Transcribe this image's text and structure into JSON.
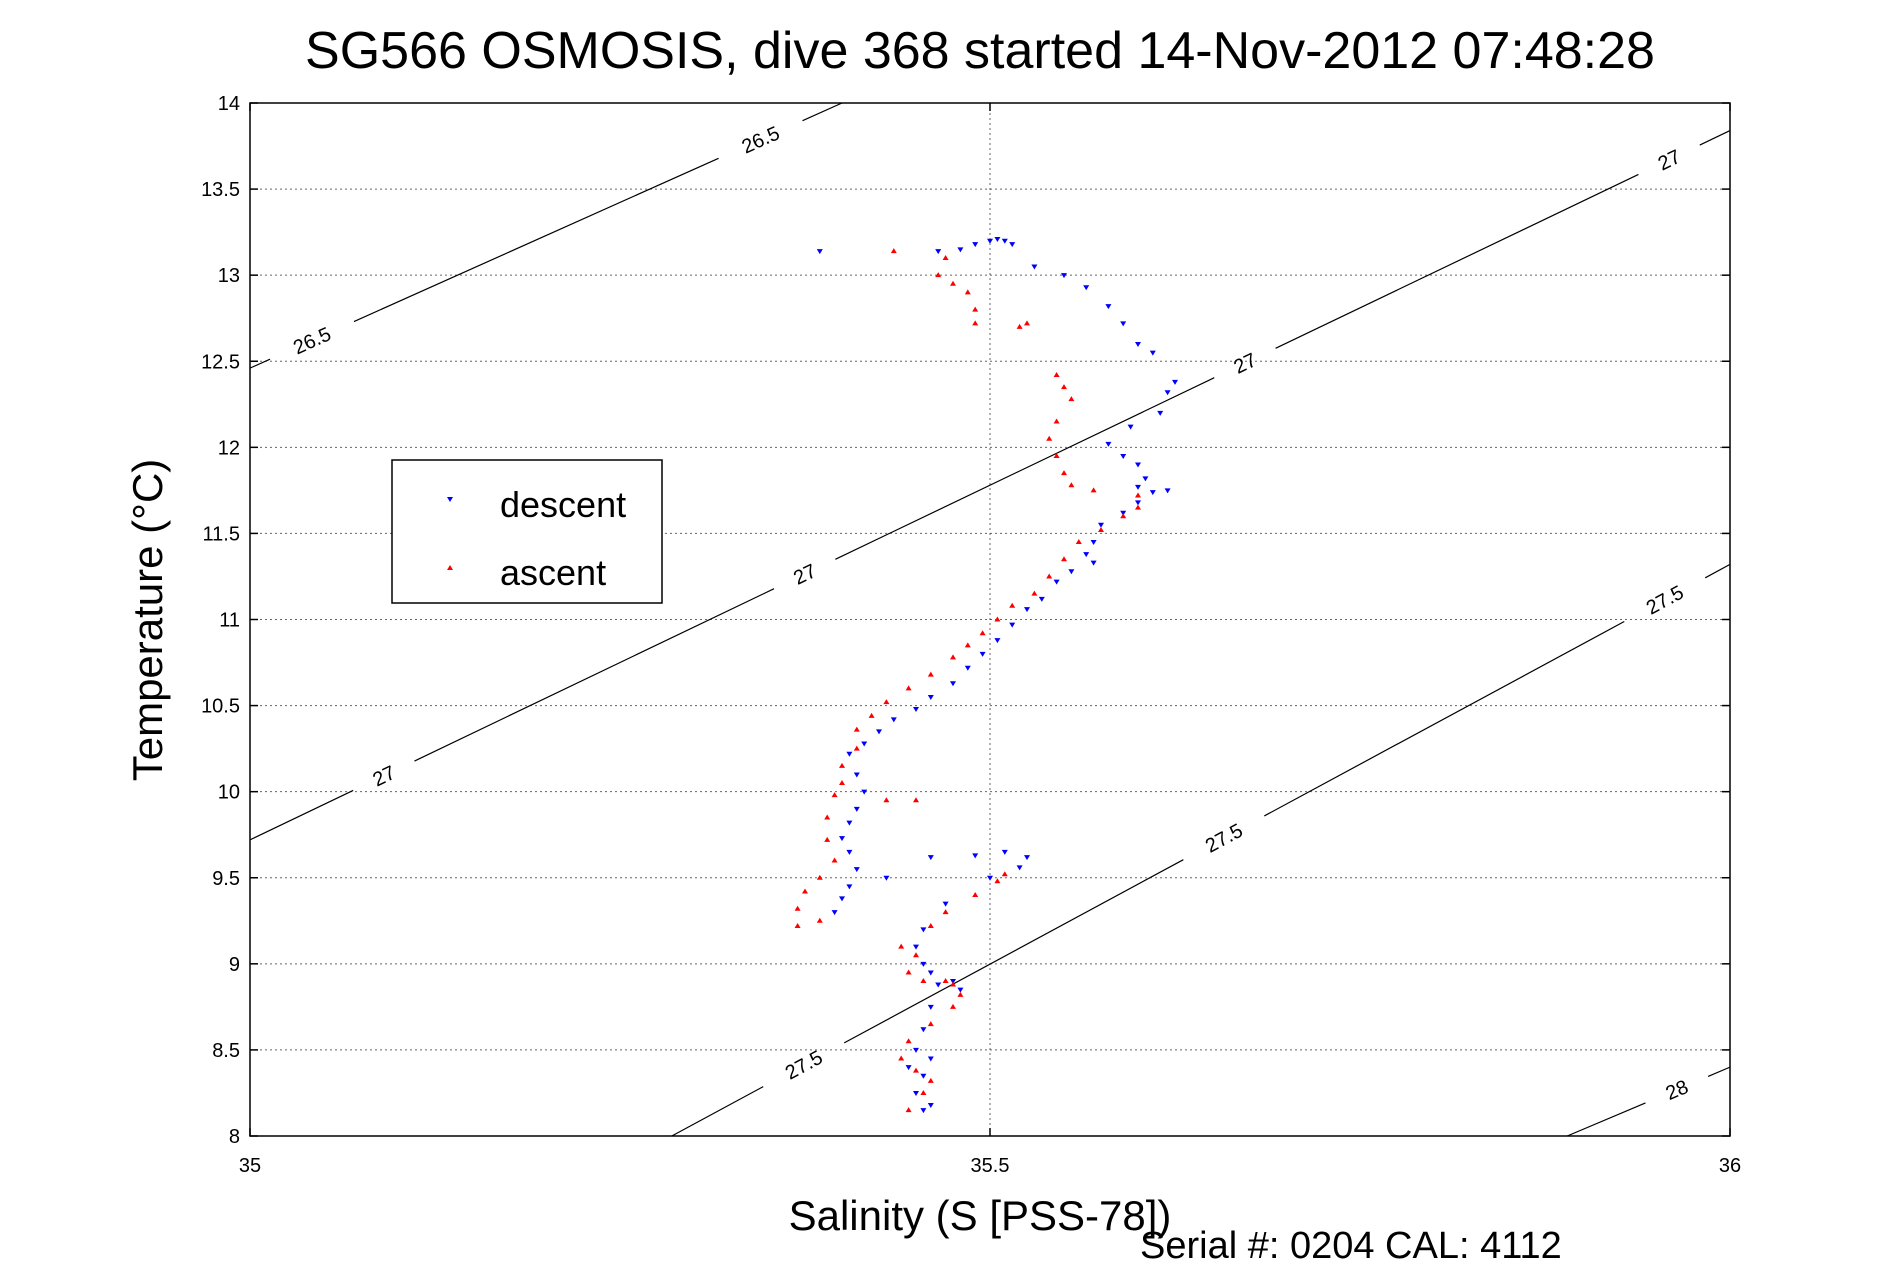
{
  "chart_data": {
    "type": "scatter",
    "title": "SG566 OSMOSIS, dive 368 started 14-Nov-2012 07:48:28",
    "xlabel": "Salinity (S [PSS-78])",
    "ylabel": "Temperature (°C)",
    "xlim": [
      35,
      36
    ],
    "ylim": [
      8,
      14
    ],
    "xticks": [
      35,
      35.5,
      36
    ],
    "xtick_labels": [
      "35",
      "35.5",
      "36"
    ],
    "yticks": [
      8,
      8.5,
      9,
      9.5,
      10,
      10.5,
      11,
      11.5,
      12,
      12.5,
      13,
      13.5,
      14
    ],
    "ytick_labels": [
      "8",
      "8.5",
      "9",
      "9.5",
      "10",
      "10.5",
      "11",
      "11.5",
      "12",
      "12.5",
      "13",
      "13.5",
      "14"
    ],
    "grid": true,
    "legend_position": "middle-left",
    "footer": "Serial #: 0204  CAL: 4112",
    "colors": {
      "descent": "#0000ff",
      "ascent": "#ff0000",
      "contour": "#000000"
    },
    "series": [
      {
        "name": "descent",
        "marker": "triangle-down",
        "color": "#0000ff",
        "points": [
          [
            35.385,
            13.14
          ],
          [
            35.465,
            13.14
          ],
          [
            35.48,
            13.15
          ],
          [
            35.49,
            13.18
          ],
          [
            35.5,
            13.2
          ],
          [
            35.505,
            13.21
          ],
          [
            35.51,
            13.2
          ],
          [
            35.515,
            13.18
          ],
          [
            35.53,
            13.05
          ],
          [
            35.55,
            13.0
          ],
          [
            35.565,
            12.93
          ],
          [
            35.58,
            12.82
          ],
          [
            35.59,
            12.72
          ],
          [
            35.6,
            12.6
          ],
          [
            35.61,
            12.55
          ],
          [
            35.625,
            12.38
          ],
          [
            35.62,
            12.32
          ],
          [
            35.615,
            12.2
          ],
          [
            35.595,
            12.12
          ],
          [
            35.58,
            12.02
          ],
          [
            35.59,
            11.95
          ],
          [
            35.6,
            11.9
          ],
          [
            35.605,
            11.82
          ],
          [
            35.6,
            11.77
          ],
          [
            35.61,
            11.74
          ],
          [
            35.62,
            11.75
          ],
          [
            35.6,
            11.68
          ],
          [
            35.59,
            11.62
          ],
          [
            35.575,
            11.55
          ],
          [
            35.57,
            11.45
          ],
          [
            35.565,
            11.38
          ],
          [
            35.57,
            11.33
          ],
          [
            35.555,
            11.28
          ],
          [
            35.545,
            11.22
          ],
          [
            35.535,
            11.12
          ],
          [
            35.525,
            11.06
          ],
          [
            35.515,
            10.97
          ],
          [
            35.505,
            10.88
          ],
          [
            35.495,
            10.8
          ],
          [
            35.485,
            10.72
          ],
          [
            35.475,
            10.63
          ],
          [
            35.46,
            10.55
          ],
          [
            35.45,
            10.48
          ],
          [
            35.435,
            10.42
          ],
          [
            35.425,
            10.35
          ],
          [
            35.415,
            10.28
          ],
          [
            35.405,
            10.22
          ],
          [
            35.41,
            10.1
          ],
          [
            35.415,
            10.0
          ],
          [
            35.41,
            9.9
          ],
          [
            35.405,
            9.82
          ],
          [
            35.4,
            9.73
          ],
          [
            35.405,
            9.65
          ],
          [
            35.41,
            9.55
          ],
          [
            35.405,
            9.45
          ],
          [
            35.4,
            9.38
          ],
          [
            35.395,
            9.3
          ],
          [
            35.43,
            9.5
          ],
          [
            35.46,
            9.62
          ],
          [
            35.49,
            9.63
          ],
          [
            35.51,
            9.65
          ],
          [
            35.525,
            9.62
          ],
          [
            35.52,
            9.56
          ],
          [
            35.5,
            9.5
          ],
          [
            35.47,
            9.35
          ],
          [
            35.455,
            9.2
          ],
          [
            35.45,
            9.1
          ],
          [
            35.455,
            9.0
          ],
          [
            35.46,
            8.95
          ],
          [
            35.465,
            8.88
          ],
          [
            35.48,
            8.85
          ],
          [
            35.475,
            8.9
          ],
          [
            35.46,
            8.75
          ],
          [
            35.455,
            8.62
          ],
          [
            35.45,
            8.5
          ],
          [
            35.46,
            8.45
          ],
          [
            35.455,
            8.35
          ],
          [
            35.45,
            8.25
          ],
          [
            35.46,
            8.18
          ],
          [
            35.455,
            8.15
          ],
          [
            35.445,
            8.4
          ]
        ]
      },
      {
        "name": "ascent",
        "marker": "triangle-up",
        "color": "#ff0000",
        "points": [
          [
            35.435,
            13.14
          ],
          [
            35.47,
            13.1
          ],
          [
            35.465,
            13.0
          ],
          [
            35.475,
            12.95
          ],
          [
            35.485,
            12.9
          ],
          [
            35.49,
            12.8
          ],
          [
            35.49,
            12.72
          ],
          [
            35.52,
            12.7
          ],
          [
            35.525,
            12.72
          ],
          [
            35.545,
            12.42
          ],
          [
            35.55,
            12.35
          ],
          [
            35.555,
            12.28
          ],
          [
            35.545,
            12.15
          ],
          [
            35.54,
            12.05
          ],
          [
            35.545,
            11.95
          ],
          [
            35.55,
            11.85
          ],
          [
            35.555,
            11.78
          ],
          [
            35.57,
            11.75
          ],
          [
            35.6,
            11.72
          ],
          [
            35.6,
            11.65
          ],
          [
            35.59,
            11.6
          ],
          [
            35.575,
            11.52
          ],
          [
            35.56,
            11.45
          ],
          [
            35.55,
            11.35
          ],
          [
            35.54,
            11.25
          ],
          [
            35.53,
            11.15
          ],
          [
            35.515,
            11.08
          ],
          [
            35.505,
            11.0
          ],
          [
            35.495,
            10.92
          ],
          [
            35.485,
            10.85
          ],
          [
            35.475,
            10.78
          ],
          [
            35.46,
            10.68
          ],
          [
            35.445,
            10.6
          ],
          [
            35.43,
            10.52
          ],
          [
            35.42,
            10.44
          ],
          [
            35.41,
            10.36
          ],
          [
            35.41,
            10.25
          ],
          [
            35.4,
            10.15
          ],
          [
            35.4,
            10.05
          ],
          [
            35.395,
            9.98
          ],
          [
            35.43,
            9.95
          ],
          [
            35.45,
            9.95
          ],
          [
            35.39,
            9.85
          ],
          [
            35.39,
            9.72
          ],
          [
            35.395,
            9.6
          ],
          [
            35.385,
            9.5
          ],
          [
            35.375,
            9.42
          ],
          [
            35.37,
            9.32
          ],
          [
            35.37,
            9.22
          ],
          [
            35.385,
            9.25
          ],
          [
            35.44,
            9.1
          ],
          [
            35.46,
            9.22
          ],
          [
            35.47,
            9.3
          ],
          [
            35.49,
            9.4
          ],
          [
            35.505,
            9.48
          ],
          [
            35.51,
            9.52
          ],
          [
            35.45,
            9.05
          ],
          [
            35.445,
            8.95
          ],
          [
            35.455,
            8.9
          ],
          [
            35.47,
            8.9
          ],
          [
            35.475,
            8.88
          ],
          [
            35.48,
            8.82
          ],
          [
            35.475,
            8.75
          ],
          [
            35.46,
            8.65
          ],
          [
            35.445,
            8.55
          ],
          [
            35.44,
            8.45
          ],
          [
            35.45,
            8.38
          ],
          [
            35.46,
            8.32
          ],
          [
            35.455,
            8.25
          ],
          [
            35.445,
            8.15
          ]
        ]
      }
    ],
    "contours": [
      {
        "label": "26.5",
        "points": [
          [
            35.0,
            12.46
          ],
          [
            35.4,
            14.0
          ]
        ],
        "label_positions": [
          [
            35.043,
            12.6
          ],
          [
            35.348,
            13.73
          ]
        ]
      },
      {
        "label": "27",
        "points": [
          [
            35.0,
            9.72
          ],
          [
            36.0,
            13.84
          ]
        ],
        "label_positions": [
          [
            35.09,
            10.1
          ],
          [
            35.37,
            11.35
          ],
          [
            35.67,
            12.53
          ],
          [
            35.96,
            13.65
          ]
        ]
      },
      {
        "label": "27.5",
        "points": [
          [
            35.285,
            8.0
          ],
          [
            36.0,
            11.32
          ]
        ],
        "label_positions": [
          [
            35.375,
            8.4
          ],
          [
            35.66,
            9.7
          ],
          [
            35.96,
            11.05
          ]
        ]
      },
      {
        "label": "28",
        "points": [
          [
            35.89,
            8.0
          ],
          [
            36.0,
            8.4
          ]
        ],
        "label_positions": [
          [
            35.965,
            8.25
          ]
        ]
      }
    ]
  }
}
